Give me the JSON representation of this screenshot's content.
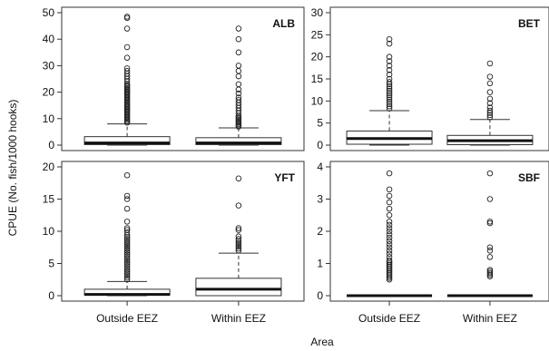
{
  "figure": {
    "ylabel": "CPUE (No. fish/1000 hooks)",
    "xlabel": "Area"
  },
  "chart_data": [
    {
      "type": "box",
      "title": "ALB",
      "categories": [
        "Outside EEZ",
        "Within EEZ"
      ],
      "ylim": [
        0,
        50
      ],
      "yticks": [
        0,
        10,
        20,
        30,
        40,
        50
      ],
      "boxes": [
        {
          "min": 0,
          "q1": 0.2,
          "median": 0.8,
          "q3": 3.2,
          "whisker_high": 8,
          "outliers": [
            8.5,
            9,
            9.5,
            10,
            10.5,
            11,
            11.5,
            12,
            12.5,
            13,
            13.5,
            14,
            14.5,
            15,
            15.5,
            16,
            16.5,
            17,
            17.5,
            18,
            18.5,
            19,
            19.5,
            20,
            20.5,
            21,
            21.5,
            22,
            22.5,
            23,
            24,
            25,
            26,
            27,
            28,
            29,
            33,
            37,
            44,
            48,
            48.5
          ]
        },
        {
          "min": 0,
          "q1": 0.2,
          "median": 0.8,
          "q3": 2.8,
          "whisker_high": 6.5,
          "outliers": [
            7,
            7.5,
            8,
            8.5,
            9,
            9.5,
            10,
            10.5,
            11,
            12,
            13,
            14,
            15,
            16,
            17,
            18,
            19.5,
            21,
            23,
            26,
            28,
            30,
            35,
            40,
            44
          ]
        }
      ]
    },
    {
      "type": "box",
      "title": "BET",
      "categories": [
        "Outside EEZ",
        "Within EEZ"
      ],
      "ylim": [
        0,
        30
      ],
      "yticks": [
        0,
        5,
        10,
        15,
        20,
        25,
        30
      ],
      "boxes": [
        {
          "min": 0,
          "q1": 0.2,
          "median": 1.5,
          "q3": 3.2,
          "whisker_high": 7.8,
          "outliers": [
            8.3,
            8.8,
            9.3,
            9.8,
            10.3,
            10.8,
            11.3,
            11.8,
            12.3,
            12.8,
            13.3,
            13.8,
            14.3,
            15,
            16,
            17,
            18,
            19,
            20,
            23,
            24
          ]
        },
        {
          "min": 0,
          "q1": 0.1,
          "median": 1,
          "q3": 2.2,
          "whisker_high": 5.8,
          "outliers": [
            6.3,
            6.8,
            7.3,
            7.8,
            8.5,
            9.5,
            10.5,
            12,
            14,
            15.5,
            18.5
          ]
        }
      ]
    },
    {
      "type": "box",
      "title": "YFT",
      "categories": [
        "Outside EEZ",
        "Within EEZ"
      ],
      "ylim": [
        0,
        20
      ],
      "yticks": [
        0,
        5,
        10,
        15,
        20
      ],
      "boxes": [
        {
          "min": 0,
          "q1": 0.1,
          "median": 0.2,
          "q3": 1,
          "whisker_high": 2.2,
          "outliers": [
            2.5,
            2.8,
            3.1,
            3.4,
            3.7,
            4,
            4.3,
            4.6,
            4.9,
            5.2,
            5.5,
            5.8,
            6.1,
            6.4,
            6.7,
            7,
            7.3,
            7.6,
            7.9,
            8.2,
            8.5,
            8.8,
            9.1,
            9.4,
            9.8,
            10.2,
            10.5,
            11.5,
            13.5,
            15,
            15.5,
            18.7
          ]
        },
        {
          "min": 0,
          "q1": 0,
          "median": 1,
          "q3": 2.7,
          "whisker_high": 6.6,
          "outliers": [
            7,
            7.3,
            7.6,
            7.9,
            8.2,
            8.5,
            8.8,
            9.2,
            10.2,
            10.5,
            14,
            18.2
          ]
        }
      ]
    },
    {
      "type": "box",
      "title": "SBF",
      "categories": [
        "Outside EEZ",
        "Within EEZ"
      ],
      "ylim": [
        0,
        4
      ],
      "yticks": [
        0,
        1,
        2,
        3,
        4
      ],
      "boxes": [
        {
          "min": 0,
          "q1": 0,
          "median": 0,
          "q3": 0,
          "whisker_high": 0,
          "outliers": [
            0.5,
            0.55,
            0.6,
            0.65,
            0.7,
            0.75,
            0.8,
            0.85,
            0.9,
            0.95,
            1,
            1.05,
            1.1,
            1.2,
            1.3,
            1.4,
            1.5,
            1.6,
            1.7,
            1.8,
            1.9,
            2,
            2.1,
            2.2,
            2.3,
            2.5,
            2.7,
            2.9,
            3.1,
            3.3,
            3.8
          ]
        },
        {
          "min": 0,
          "q1": 0,
          "median": 0,
          "q3": 0,
          "whisker_high": 0,
          "outliers": [
            0.6,
            0.65,
            0.7,
            0.75,
            0.8,
            1.2,
            1.4,
            1.5,
            2.25,
            2.3,
            3,
            3.8
          ]
        }
      ]
    }
  ]
}
